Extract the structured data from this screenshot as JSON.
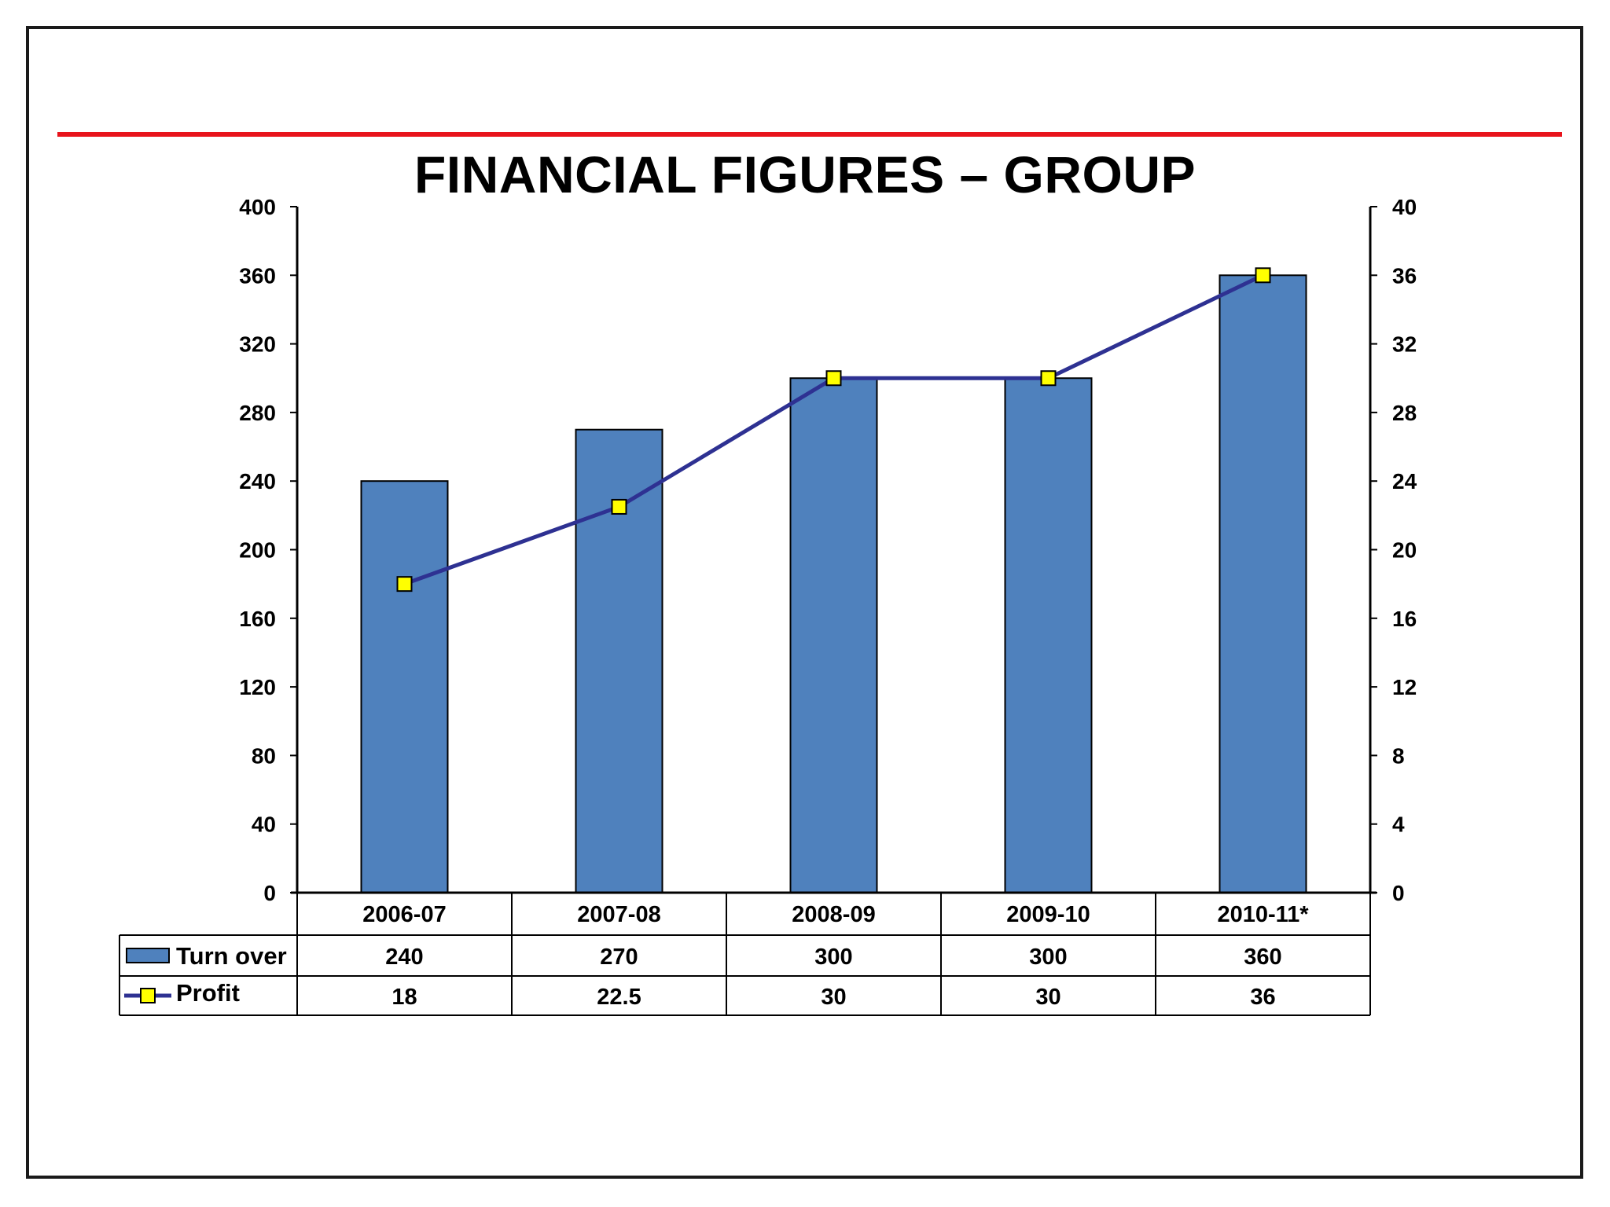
{
  "slide": {
    "title": "FINANCIAL FIGURES – GROUP",
    "rule_color": "#e8141c",
    "frame_color": "#1a1a1a"
  },
  "chart_data": {
    "type": "bar",
    "title": "FINANCIAL FIGURES – GROUP",
    "categories": [
      "2006-07",
      "2007-08",
      "2008-09",
      "2009-10",
      "2010-11*"
    ],
    "series": [
      {
        "name": "Turn over",
        "type": "bar",
        "axis": "left",
        "values": [
          240,
          270,
          300,
          300,
          360
        ],
        "color": "#4f81bd"
      },
      {
        "name": "Profit",
        "type": "line",
        "axis": "right",
        "values": [
          18,
          22.5,
          30,
          30,
          36
        ],
        "color": "#2e3192",
        "marker_color": "#ffff00"
      }
    ],
    "left_axis": {
      "ylim": [
        0,
        400
      ],
      "ticks": [
        0,
        40,
        80,
        120,
        160,
        200,
        240,
        280,
        320,
        360,
        400
      ]
    },
    "right_axis": {
      "ylim": [
        0,
        40
      ],
      "ticks": [
        0,
        4,
        8,
        12,
        16,
        20,
        24,
        28,
        32,
        36,
        40
      ]
    },
    "data_table": {
      "rows": [
        {
          "label": "Turn over",
          "values": [
            "240",
            "270",
            "300",
            "300",
            "360"
          ]
        },
        {
          "label": "Profit",
          "values": [
            "18",
            "22.5",
            "30",
            "30",
            "36"
          ]
        }
      ]
    },
    "grid": false,
    "legend": "data-table-left"
  }
}
